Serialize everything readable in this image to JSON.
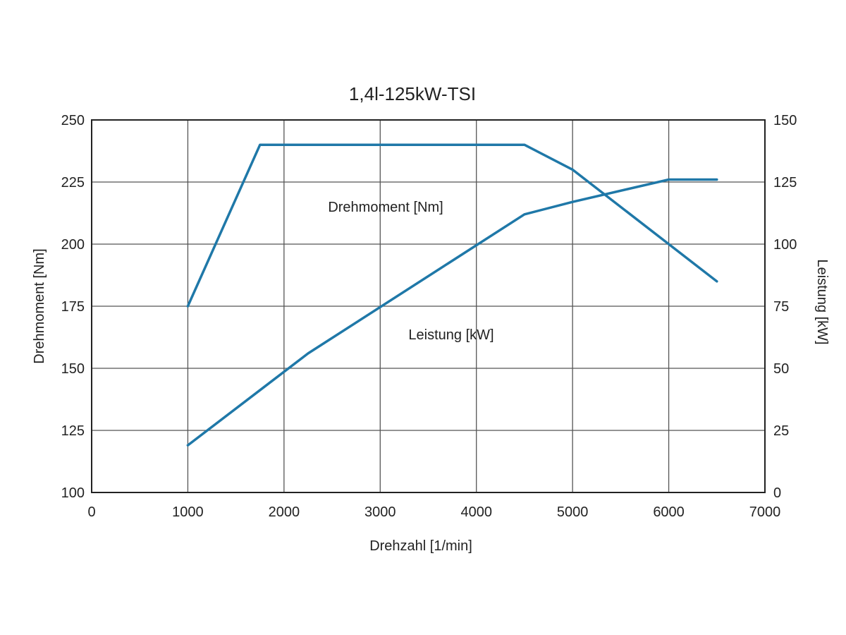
{
  "chart_data": {
    "type": "line",
    "title": "1,4l-125kW-TSI",
    "xlabel": "Drehzahl [1/min]",
    "ylabel_left": "Drehmoment [Nm]",
    "ylabel_right": "Leistung [kW]",
    "xlim": [
      0,
      7000
    ],
    "ylim_left": [
      100,
      250
    ],
    "ylim_right": [
      0,
      150
    ],
    "x_ticks": [
      "0",
      "1000",
      "2000",
      "3000",
      "4000",
      "5000",
      "6000",
      "7000"
    ],
    "y_ticks_left": [
      "100",
      "125",
      "150",
      "175",
      "200",
      "225",
      "250"
    ],
    "y_ticks_right": [
      "0",
      "25",
      "50",
      "75",
      "100",
      "125",
      "150"
    ],
    "grid": true,
    "color": "#1f78a8",
    "series": [
      {
        "name": "Drehmoment [Nm]",
        "axis": "left",
        "x": [
          1000,
          1750,
          4500,
          5000,
          6000,
          6500
        ],
        "y": [
          175,
          240,
          240,
          230,
          200,
          185
        ]
      },
      {
        "name": "Leistung [kW]",
        "axis": "right",
        "x": [
          1000,
          2250,
          4500,
          5000,
          6000,
          6500
        ],
        "y": [
          19,
          56,
          112,
          117,
          126,
          126
        ]
      }
    ]
  }
}
